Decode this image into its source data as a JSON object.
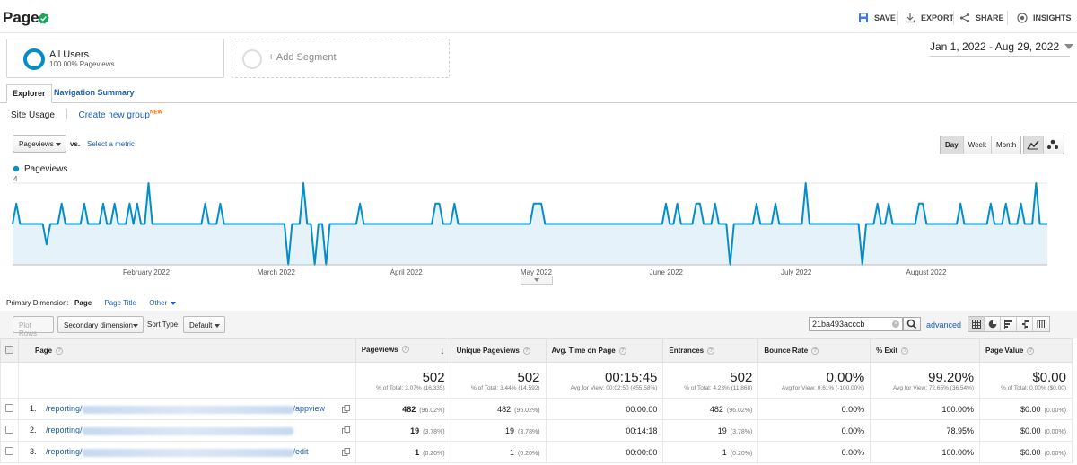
{
  "header": {
    "title": "Pages",
    "actions": {
      "save": "SAVE",
      "export": "EXPORT",
      "share": "SHARE",
      "insights": "INSIGHTS"
    }
  },
  "segments": {
    "all_users": {
      "name": "All Users",
      "sub": "100.00% Pageviews"
    },
    "add_segment": "+ Add Segment"
  },
  "date_range": "Jan 1, 2022 - Aug 29, 2022",
  "tabs": [
    "Explorer",
    "Navigation Summary"
  ],
  "subtabs": {
    "site_usage": "Site Usage",
    "create_group": "Create new group",
    "new_badge": "NEW"
  },
  "chart_controls": {
    "metric": "Pageviews",
    "vs": "vs.",
    "select_metric": "Select a metric",
    "granularity": [
      "Day",
      "Week",
      "Month"
    ],
    "selected_granularity": "Day"
  },
  "chart_data": {
    "type": "line",
    "series": [
      {
        "name": "Pageviews",
        "values": [
          2,
          3,
          2,
          2,
          2,
          2,
          2,
          2,
          2,
          1,
          2,
          2,
          2,
          3,
          2,
          2,
          2,
          2,
          2,
          3,
          2,
          2,
          2,
          2,
          3,
          2,
          2,
          3,
          2,
          2,
          2,
          3,
          2,
          3,
          2,
          2,
          4,
          2,
          2,
          2,
          2,
          2,
          2,
          2,
          2,
          2,
          2,
          2,
          2,
          2,
          2,
          3,
          2,
          2,
          2,
          3,
          2,
          2,
          2,
          2,
          2,
          2,
          2,
          2,
          2,
          2,
          2,
          2,
          2,
          2,
          2,
          2,
          2,
          0,
          2,
          2,
          2,
          4,
          2,
          2,
          0,
          2,
          2,
          0,
          2,
          2,
          2,
          2,
          2,
          2,
          2,
          2,
          3,
          2,
          2,
          2,
          2,
          2,
          2,
          2,
          2,
          2,
          2,
          2,
          2,
          2,
          2,
          2,
          2,
          2,
          2,
          2,
          3,
          3,
          2,
          2,
          2,
          3,
          2,
          2,
          2,
          2,
          2,
          2,
          2,
          2,
          2,
          2,
          2,
          2,
          2,
          2,
          2,
          2,
          2,
          2,
          2,
          2,
          3,
          3,
          3,
          2,
          2,
          2,
          2,
          2,
          2,
          2,
          2,
          2,
          2,
          2,
          2,
          2,
          2,
          2,
          2,
          2,
          2,
          2,
          2,
          2,
          2,
          2,
          2,
          2,
          2,
          2,
          2,
          2,
          2,
          2,
          2,
          3,
          2,
          2,
          3,
          2,
          2,
          2,
          2,
          3,
          3,
          2,
          2,
          2,
          3,
          2,
          2,
          2,
          0,
          2,
          2,
          2,
          2,
          2,
          2,
          3,
          2,
          2,
          2,
          2,
          3,
          2,
          2,
          2,
          2,
          2,
          2,
          2,
          4,
          2,
          2,
          2,
          2,
          2,
          2,
          2,
          2,
          2,
          2,
          2,
          2,
          2,
          2,
          0,
          2,
          2,
          2,
          3,
          2,
          2,
          3,
          2,
          2,
          2,
          2,
          2,
          2,
          2,
          3,
          3,
          2,
          2,
          2,
          2,
          2,
          2,
          2,
          2,
          2,
          3,
          2,
          2,
          2,
          2,
          2,
          2,
          2,
          3,
          2,
          2,
          2,
          3,
          2,
          2,
          2,
          3,
          2,
          2,
          2,
          4,
          2,
          2,
          2
        ]
      }
    ],
    "x_labels": [
      "February 2022",
      "March 2022",
      "April 2022",
      "May 2022",
      "June 2022",
      "July 2022",
      "August 2022"
    ],
    "y_ticks": [
      "4",
      "2"
    ],
    "ylim": [
      0,
      4
    ],
    "grid": true,
    "line_color": "#058dc7"
  },
  "primary_dimension": {
    "label": "Primary Dimension:",
    "options": [
      "Page",
      "Page Title",
      "Other"
    ]
  },
  "table_controls": {
    "plot_rows": "Plot Rows",
    "secondary_dimension": "Secondary dimension",
    "sort_type_label": "Sort Type:",
    "sort_type_value": "Default",
    "search_value": "21ba493acccb",
    "advanced": "advanced"
  },
  "table": {
    "headers": [
      "Page",
      "Pageviews",
      "Unique Pageviews",
      "Avg. Time on Page",
      "Entrances",
      "Bounce Rate",
      "% Exit",
      "Page Value"
    ],
    "totals": [
      {
        "big": "502",
        "small": "% of Total: 3.07% (16,335)"
      },
      {
        "big": "502",
        "small": "% of Total: 3.44% (14,592)"
      },
      {
        "big": "00:15:45",
        "small": "Avg for View: 00:02:50 (455.58%)"
      },
      {
        "big": "502",
        "small": "% of Total: 4.23% (11,868)"
      },
      {
        "big": "0.00%",
        "small": "Avg for View: 0.61% (-100.00%)"
      },
      {
        "big": "99.20%",
        "small": "Avg for View: 72.65% (36.54%)"
      },
      {
        "big": "$0.00",
        "small": "% of Total: 0.00% ($0.00)"
      }
    ],
    "rows": [
      {
        "index": "1.",
        "prefix": "/reporting/",
        "suffix": "/appview",
        "pageviews": "482",
        "pageviews_pct": "(96.02%)",
        "unique": "482",
        "unique_pct": "(96.02%)",
        "avg_time": "00:00:00",
        "entrances": "482",
        "entrances_pct": "(96.02%)",
        "bounce": "0.00%",
        "exit": "100.00%",
        "value": "$0.00",
        "value_pct": "(0.00%)"
      },
      {
        "index": "2.",
        "prefix": "/reporting/",
        "suffix": "",
        "pageviews": "19",
        "pageviews_pct": "(3.78%)",
        "unique": "19",
        "unique_pct": "(3.78%)",
        "avg_time": "00:14:18",
        "entrances": "19",
        "entrances_pct": "(3.78%)",
        "bounce": "0.00%",
        "exit": "78.95%",
        "value": "$0.00",
        "value_pct": "(0.00%)"
      },
      {
        "index": "3.",
        "prefix": "/reporting/",
        "suffix": "/edit",
        "pageviews": "1",
        "pageviews_pct": "(0.20%)",
        "unique": "1",
        "unique_pct": "(0.20%)",
        "avg_time": "00:00:00",
        "entrances": "1",
        "entrances_pct": "(0.20%)",
        "bounce": "0.00%",
        "exit": "100.00%",
        "value": "$0.00",
        "value_pct": "(0.00%)"
      }
    ]
  }
}
